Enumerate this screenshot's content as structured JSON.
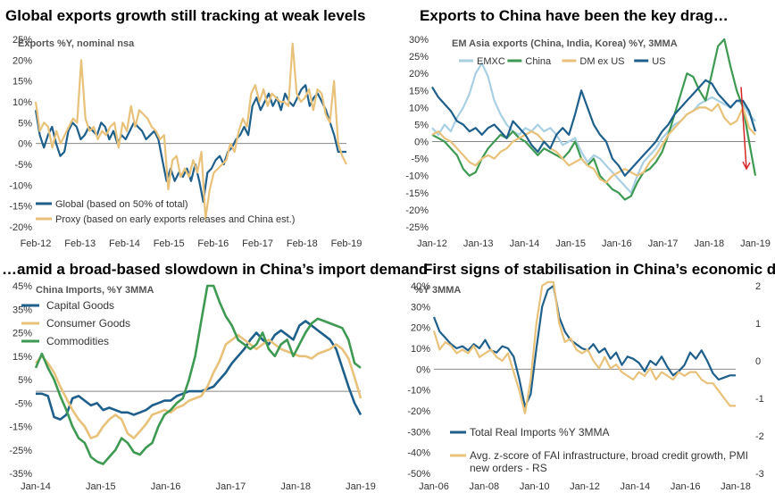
{
  "colors": {
    "blue": "#1f5f8b",
    "tan": "#e8c27a",
    "green": "#3e9a52",
    "lightblue": "#a9cfe3",
    "arrow": "#d62728",
    "axis": "#666666"
  },
  "chart_data": [
    {
      "type": "line",
      "title": "Global exports growth still tracking at weak levels",
      "subtitle": "Exports %Y, nominal nsa",
      "ylim": [
        -20,
        25
      ],
      "yticks": [
        "-20%",
        "-15%",
        "-10%",
        "-5%",
        "0%",
        "5%",
        "10%",
        "15%",
        "20%",
        "25%"
      ],
      "xticks": [
        "Feb-12",
        "Feb-13",
        "Feb-14",
        "Feb-15",
        "Feb-16",
        "Feb-17",
        "Feb-18",
        "Feb-19"
      ],
      "series": [
        {
          "name": "Global (based on 50% of total)",
          "color": "blue",
          "values": [
            8,
            2,
            -1,
            2,
            4,
            0,
            -3,
            -2,
            3,
            5,
            4,
            1,
            2,
            4,
            3,
            2,
            5,
            4,
            1,
            3,
            0,
            2,
            1,
            3,
            5,
            4,
            3,
            1,
            2,
            3,
            1,
            -4,
            -9,
            -6,
            -9,
            -7,
            -8,
            -6,
            -9,
            -5,
            -9,
            -14,
            -7,
            -6,
            -4,
            -3,
            -5,
            -2,
            -1,
            1,
            2,
            4,
            2,
            9,
            11,
            8,
            10,
            12,
            9,
            11,
            8,
            12,
            10,
            9,
            11,
            13,
            14,
            9,
            11,
            12,
            10,
            8,
            5,
            2,
            -2,
            -2,
            -2
          ]
        },
        {
          "name": "Proxy (based on early exports releases and China est.)",
          "color": "tan",
          "values": [
            10,
            3,
            5,
            4,
            -1,
            3,
            0,
            2,
            4,
            6,
            5,
            20,
            6,
            3,
            4,
            1,
            3,
            2,
            4,
            5,
            -1,
            5,
            3,
            9,
            4,
            8,
            7,
            6,
            4,
            3,
            1,
            2,
            -11,
            -4,
            -3,
            -8,
            -6,
            -8,
            -4,
            -7,
            -2,
            -18,
            -11,
            -7,
            -6,
            -5,
            -4,
            0,
            -2,
            3,
            6,
            4,
            12,
            14,
            10,
            13,
            9,
            12,
            11,
            10,
            10,
            9,
            24,
            12,
            10,
            11,
            13,
            8,
            13,
            12,
            7,
            5,
            15,
            0,
            -3,
            -5
          ]
        }
      ]
    },
    {
      "type": "line",
      "title": "Exports to China have been the key drag…",
      "subtitle": "EM Asia exports (China, India, Korea) %Y, 3MMA",
      "ylim": [
        -25,
        30
      ],
      "yticks": [
        "-25%",
        "-20%",
        "-15%",
        "-10%",
        "-5%",
        "0%",
        "5%",
        "10%",
        "15%",
        "20%",
        "25%",
        "30%"
      ],
      "xticks": [
        "Jan-12",
        "Jan-13",
        "Jan-14",
        "Jan-15",
        "Jan-16",
        "Jan-17",
        "Jan-18",
        "Jan-19"
      ],
      "series": [
        {
          "name": "EMXC",
          "color": "lightblue",
          "values": [
            4,
            2,
            5,
            3,
            7,
            10,
            14,
            20,
            23,
            19,
            12,
            8,
            5,
            3,
            2,
            4,
            3,
            5,
            3,
            4,
            2,
            -1,
            0,
            1,
            -3,
            -6,
            -4,
            -5,
            -7,
            -9,
            -11,
            -13,
            -15,
            -10,
            -6,
            -4,
            -2,
            1,
            3,
            5,
            6,
            8,
            9,
            11,
            12,
            13,
            12,
            11,
            10,
            12,
            11,
            8,
            6
          ]
        },
        {
          "name": "China",
          "color": "green",
          "values": [
            2,
            1,
            0,
            -2,
            -4,
            -8,
            -10,
            -9,
            -5,
            -2,
            0,
            2,
            1,
            3,
            1,
            0,
            -2,
            -4,
            -2,
            -3,
            -4,
            -5,
            -3,
            0,
            -5,
            -7,
            -5,
            -10,
            -12,
            -14,
            -15,
            -17,
            -16,
            -12,
            -9,
            -8,
            -6,
            -3,
            2,
            8,
            14,
            20,
            19,
            15,
            12,
            20,
            28,
            30,
            22,
            15,
            10,
            0,
            -10
          ]
        },
        {
          "name": "DM ex US",
          "color": "tan",
          "values": [
            2,
            3,
            1,
            0,
            -2,
            -4,
            -6,
            -7,
            -5,
            -4,
            -5,
            -3,
            -2,
            0,
            1,
            2,
            3,
            2,
            0,
            -2,
            -3,
            -5,
            -7,
            -6,
            -5,
            -7,
            -8,
            -11,
            -12,
            -10,
            -9,
            -8,
            -9,
            -10,
            -9,
            -6,
            -4,
            -1,
            2,
            4,
            6,
            8,
            9,
            10,
            10,
            9,
            11,
            7,
            5,
            6,
            10,
            4,
            2
          ]
        },
        {
          "name": "US",
          "color": "blue",
          "values": [
            16,
            13,
            11,
            9,
            6,
            5,
            3,
            4,
            2,
            4,
            5,
            3,
            1,
            6,
            4,
            2,
            -1,
            -3,
            0,
            -2,
            2,
            4,
            2,
            8,
            15,
            10,
            5,
            2,
            0,
            -5,
            -7,
            -10,
            -8,
            -6,
            -4,
            -2,
            0,
            3,
            5,
            8,
            10,
            12,
            14,
            16,
            18,
            17,
            14,
            12,
            10,
            12,
            12,
            9,
            3
          ]
        }
      ],
      "annotation": "red downward arrow"
    },
    {
      "type": "line",
      "title": "…amid a broad-based slowdown in China’s import demand",
      "subtitle": "China Imports, %Y 3MMA",
      "ylim": [
        -35,
        45
      ],
      "yticks": [
        "-35%",
        "-25%",
        "-15%",
        "-5%",
        "5%",
        "15%",
        "25%",
        "35%",
        "45%"
      ],
      "xticks": [
        "Jan-14",
        "Jan-15",
        "Jan-16",
        "Jan-17",
        "Jan-18",
        "Jan-19"
      ],
      "series": [
        {
          "name": "Capital Goods",
          "color": "blue",
          "values": [
            -1,
            -1,
            -2,
            -11,
            -12,
            -10,
            -3,
            -2,
            -4,
            -6,
            -5,
            -8,
            -7,
            -8,
            -9,
            -9,
            -10,
            -9,
            -8,
            -6,
            -5,
            -4,
            -4,
            -2,
            -1,
            0,
            0,
            0,
            1,
            2,
            5,
            8,
            12,
            15,
            18,
            22,
            25,
            22,
            20,
            24,
            26,
            24,
            22,
            28,
            30,
            28,
            26,
            24,
            22,
            18,
            10,
            2,
            -5,
            -10
          ]
        },
        {
          "name": "Consumer Goods",
          "color": "tan",
          "values": [
            12,
            15,
            12,
            8,
            2,
            -3,
            -8,
            -12,
            -15,
            -20,
            -19,
            -15,
            -12,
            -10,
            -12,
            -18,
            -20,
            -17,
            -14,
            -10,
            -9,
            -8,
            -9,
            -7,
            -6,
            -4,
            -3,
            -2,
            2,
            8,
            13,
            20,
            22,
            24,
            22,
            20,
            18,
            20,
            22,
            20,
            18,
            17,
            16,
            15,
            15,
            14,
            16,
            17,
            18,
            20,
            18,
            14,
            6,
            -3
          ]
        },
        {
          "name": "Commodities",
          "color": "green",
          "values": [
            10,
            16,
            10,
            5,
            -2,
            -8,
            -15,
            -20,
            -22,
            -28,
            -30,
            -31,
            -28,
            -25,
            -20,
            -22,
            -26,
            -27,
            -24,
            -22,
            -15,
            -10,
            -8,
            -5,
            -3,
            5,
            15,
            30,
            45,
            45,
            38,
            32,
            28,
            22,
            20,
            18,
            20,
            25,
            18,
            15,
            20,
            22,
            15,
            20,
            25,
            29,
            31,
            30,
            29,
            28,
            27,
            22,
            12,
            10
          ]
        }
      ]
    },
    {
      "type": "line",
      "title": "First signs of stabilisation in China’s economic data",
      "subtitle": "%Y 3MMA",
      "ylim": [
        -50,
        40
      ],
      "yticks": [
        "-50%",
        "-40%",
        "-30%",
        "-20%",
        "-10%",
        "0%",
        "10%",
        "20%",
        "30%",
        "40%"
      ],
      "y2lim": [
        -3,
        2
      ],
      "y2ticks": [
        "-3",
        "-2",
        "-1",
        "0",
        "1",
        "2"
      ],
      "xticks": [
        "Jan-06",
        "Jan-08",
        "Jan-10",
        "Jan-12",
        "Jan-14",
        "Jan-16",
        "Jan-18"
      ],
      "series": [
        {
          "name": "Total Real Imports %Y 3MMA",
          "color": "blue",
          "values": [
            25,
            18,
            15,
            12,
            10,
            11,
            9,
            12,
            10,
            14,
            9,
            8,
            11,
            10,
            6,
            -5,
            -18,
            -12,
            10,
            30,
            38,
            40,
            25,
            18,
            14,
            12,
            10,
            9,
            12,
            8,
            10,
            5,
            8,
            2,
            6,
            5,
            3,
            -1,
            4,
            2,
            6,
            1,
            -3,
            -1,
            2,
            8,
            5,
            9,
            4,
            -2,
            -5,
            -4,
            -3,
            -3
          ]
        },
        {
          "name": "Avg. z-score of FAI infrastructure, broad credit growth, PMI new orders - RS",
          "color": "tan",
          "values": [
            0.8,
            0.3,
            0.5,
            0.4,
            0.2,
            0.3,
            0.2,
            0.4,
            0.1,
            0.2,
            0.3,
            0.1,
            0.0,
            0.2,
            -0.3,
            -0.8,
            -1.4,
            -0.5,
            1.0,
            2.0,
            2.1,
            2.1,
            1.0,
            0.5,
            0.6,
            0.3,
            0.2,
            0.3,
            0.0,
            -0.2,
            0.1,
            -0.2,
            -0.1,
            -0.3,
            -0.4,
            -0.5,
            -0.3,
            -0.4,
            -0.2,
            -0.5,
            -0.3,
            -0.4,
            -0.5,
            -0.3,
            -0.4,
            -0.3,
            -0.3,
            -0.5,
            -0.6,
            -0.6,
            -0.8,
            -1.0,
            -1.2,
            -1.2
          ]
        }
      ]
    }
  ]
}
